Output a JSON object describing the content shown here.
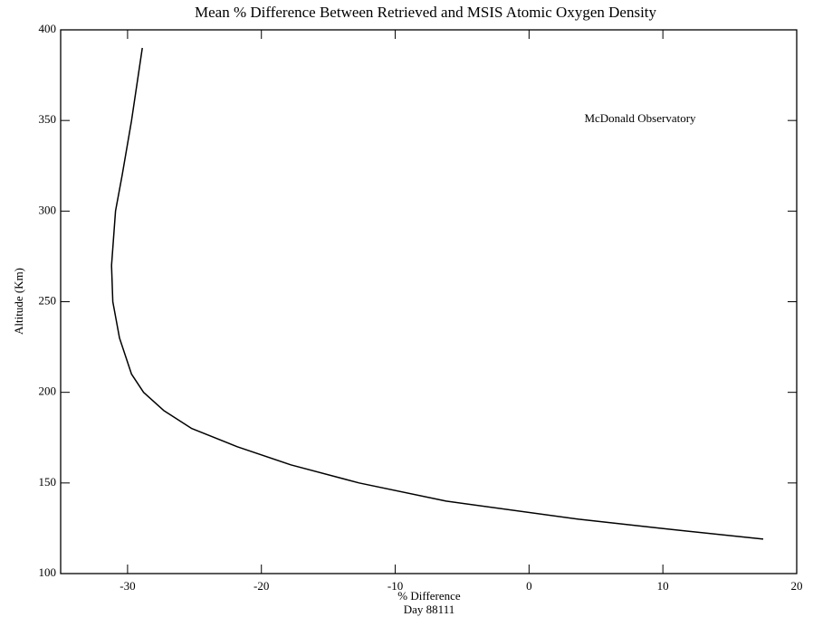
{
  "chart_data": {
    "type": "line",
    "title": "Mean % Difference Between Retrieved and MSIS Atomic Oxygen Density",
    "xlabel": "% Difference",
    "xlabel2": "Day 88111",
    "ylabel": "Altitude (Km)",
    "annotation": "McDonald Observatory",
    "x": [
      -28.9,
      -29.7,
      -30.4,
      -30.9,
      -31.2,
      -31.1,
      -30.6,
      -29.7,
      -28.8,
      -27.3,
      -25.2,
      -21.8,
      -17.8,
      -12.7,
      -6.2,
      3.7,
      9.8,
      17.5
    ],
    "series": [
      {
        "name": "Mean % Difference",
        "color": "#000000",
        "values": [
          390,
          350,
          320,
          300,
          270,
          250,
          230,
          210,
          200,
          190,
          180,
          170,
          160,
          150,
          140,
          130,
          125,
          119
        ]
      }
    ],
    "xlim": [
      -35,
      20
    ],
    "xticks": [
      -30,
      -20,
      -10,
      0,
      10,
      20
    ],
    "ylim": [
      100,
      400
    ],
    "yticks": [
      100,
      150,
      200,
      250,
      300,
      350,
      400
    ],
    "grid": false
  }
}
